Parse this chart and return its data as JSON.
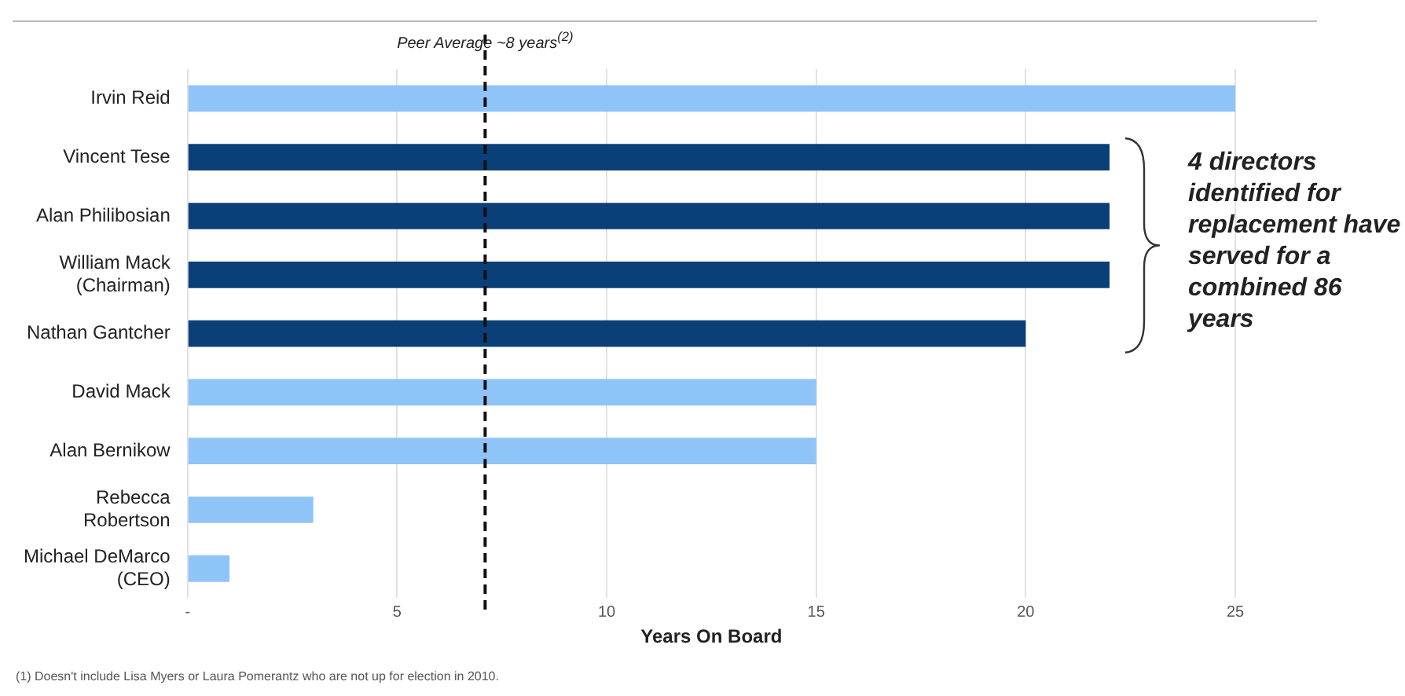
{
  "chart_data": {
    "type": "bar",
    "orientation": "horizontal",
    "categories": [
      "Irvin Reid",
      "Vincent Tese",
      "Alan Philibosian",
      "William Mack (Chairman)",
      "Nathan Gantcher",
      "David Mack",
      "Alan Bernikow",
      "Rebecca Robertson",
      "Michael DeMarco (CEO)"
    ],
    "values": [
      25,
      22,
      22,
      22,
      20,
      15,
      15,
      3,
      1
    ],
    "colors": [
      "#8ec4f8",
      "#0a3f78",
      "#0a3f78",
      "#0a3f78",
      "#0a3f78",
      "#8ec4f8",
      "#8ec4f8",
      "#8ec4f8",
      "#8ec4f8"
    ],
    "xlabel": "Years On Board",
    "xlim": [
      0,
      25
    ],
    "xticks": [
      {
        "value": 0,
        "label": "-"
      },
      5,
      10,
      15,
      20,
      25
    ],
    "grid": "x",
    "legend": false,
    "ref_lines": [
      {
        "axis": "x",
        "value": 7.1,
        "label": "Peer Average ~8 years$^{(2)}$",
        "color": "#111111",
        "line_style": "dashed"
      }
    ],
    "annotations": [
      "4 directors identified for replacement have served for a combined 86 years",
      "(1)   Doesn't include Lisa Myers or Laura Pomerantz who are not up for election in 2010."
    ]
  }
}
